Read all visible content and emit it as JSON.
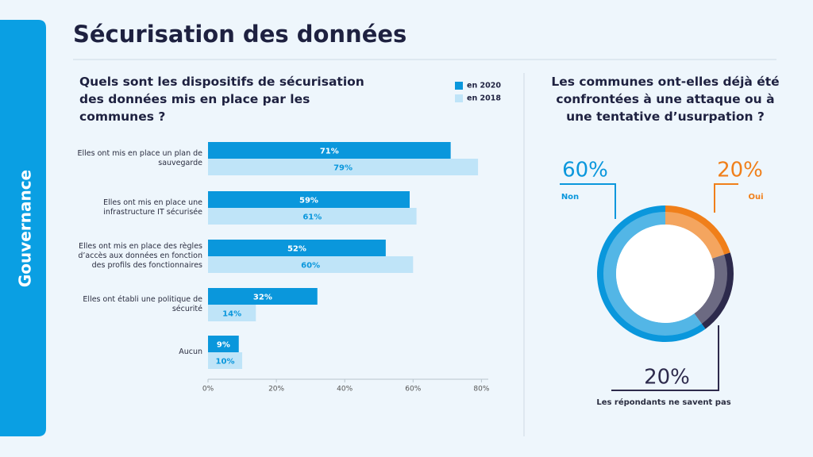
{
  "header": {
    "title": "Sécurisation des données",
    "section": "Gouvernance"
  },
  "chart_data": [
    {
      "type": "hbar",
      "title": "Quels sont les dispositifs de sécurisation des données mis en place par les communes ?",
      "categories": [
        "Elles ont mis en place un plan de sauvegarde",
        "Elles ont mis en place une infrastructure IT sécurisée",
        "Elles ont mis en place des règles d’accès aux données en fonction des profils des fonctionnaires",
        "Elles ont établi une politique de sécurité",
        "Aucun"
      ],
      "series": [
        {
          "name": "en 2020",
          "color": "#0a97dc",
          "values": [
            71,
            59,
            52,
            32,
            9
          ],
          "value_labels": [
            "71%",
            "59%",
            "52%",
            "32%",
            "9%"
          ]
        },
        {
          "name": "en 2018",
          "color": "#bfe4f8",
          "values": [
            79,
            61,
            60,
            14,
            10
          ],
          "value_labels": [
            "79%",
            "61%",
            "60%",
            "14%",
            "10%"
          ]
        }
      ],
      "xlim": [
        0,
        82
      ],
      "xticks": [
        {
          "value": 0,
          "label": "0%"
        },
        {
          "value": 20,
          "label": "20%"
        },
        {
          "value": 40,
          "label": "40%"
        },
        {
          "value": 60,
          "label": "60%"
        },
        {
          "value": 80,
          "label": "80%"
        }
      ]
    },
    {
      "type": "donut",
      "title": "Les communes ont-elles déjà été confrontées à une attaque ou à une tentative d’usurpation ?",
      "categories": [
        "Oui",
        "Les répondants ne savent pas",
        "Non"
      ],
      "values": [
        20,
        20,
        60
      ],
      "value_labels": [
        "20%",
        "20%",
        "60%"
      ],
      "colors": [
        "#f07f1a",
        "#2d2a4c",
        "#0a97dc"
      ]
    }
  ]
}
